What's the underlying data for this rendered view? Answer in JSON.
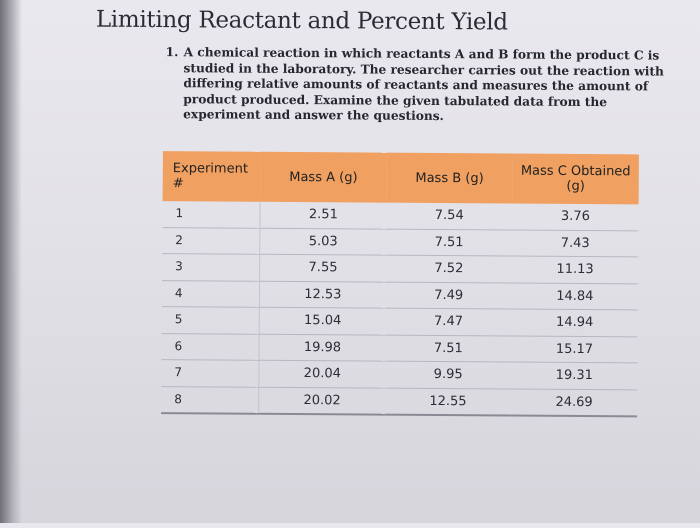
{
  "title": "Limiting Reactant and Percent Yield",
  "question": {
    "number": "1.",
    "text": "A chemical reaction in which reactants A and B form the product C is studied in the laboratory. The researcher carries out the reaction with differing relative amounts of reactants and measures the amount of product produced. Examine the given tabulated data from the experiment and answer the questions."
  },
  "table": {
    "header_color": "#f0a060",
    "headers": [
      "Experiment #",
      "Mass A (g)",
      "Mass B (g)",
      "Mass C Obtained (g)"
    ],
    "rows": [
      [
        "1",
        "2.51",
        "7.54",
        "3.76"
      ],
      [
        "2",
        "5.03",
        "7.51",
        "7.43"
      ],
      [
        "3",
        "7.55",
        "7.52",
        "11.13"
      ],
      [
        "4",
        "12.53",
        "7.49",
        "14.84"
      ],
      [
        "5",
        "15.04",
        "7.47",
        "14.94"
      ],
      [
        "6",
        "19.98",
        "7.51",
        "15.17"
      ],
      [
        "7",
        "20.04",
        "9.95",
        "19.31"
      ],
      [
        "8",
        "20.02",
        "12.55",
        "24.69"
      ]
    ]
  }
}
